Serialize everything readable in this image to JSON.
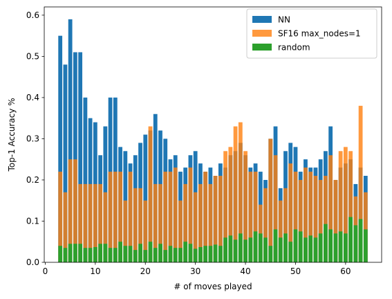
{
  "chart_data": {
    "type": "bar",
    "xlabel": "# of moves played",
    "ylabel": "Top-1 Accuracy %",
    "xlim": [
      -0.2,
      67.2
    ],
    "ylim": [
      0,
      0.62
    ],
    "xticks": [
      0,
      10,
      20,
      30,
      40,
      50,
      60
    ],
    "yticks": [
      0.0,
      0.1,
      0.2,
      0.3,
      0.4,
      0.5,
      0.6
    ],
    "ytick_labels": [
      "0.0",
      "0.1",
      "0.2",
      "0.3",
      "0.4",
      "0.5",
      "0.6"
    ],
    "grid": false,
    "legend_position": "top-right",
    "x": [
      3,
      4,
      5,
      6,
      7,
      8,
      9,
      10,
      11,
      12,
      13,
      14,
      15,
      16,
      17,
      18,
      19,
      20,
      21,
      22,
      23,
      24,
      25,
      26,
      27,
      28,
      29,
      30,
      31,
      32,
      33,
      34,
      35,
      36,
      37,
      38,
      39,
      40,
      41,
      42,
      43,
      44,
      45,
      46,
      47,
      48,
      49,
      50,
      51,
      52,
      53,
      54,
      55,
      56,
      57,
      58,
      59,
      60,
      61,
      62,
      63,
      64
    ],
    "series": [
      {
        "name": "NN",
        "color": "#1f77b4",
        "values": [
          0.55,
          0.48,
          0.59,
          0.51,
          0.51,
          0.4,
          0.35,
          0.34,
          0.26,
          0.33,
          0.4,
          0.4,
          0.28,
          0.27,
          0.24,
          0.26,
          0.29,
          0.31,
          0.32,
          0.36,
          0.32,
          0.3,
          0.25,
          0.26,
          0.22,
          0.23,
          0.26,
          0.27,
          0.24,
          0.22,
          0.23,
          0.21,
          0.24,
          0.23,
          0.26,
          0.27,
          0.29,
          0.26,
          0.23,
          0.24,
          0.22,
          0.2,
          0.3,
          0.33,
          0.18,
          0.27,
          0.29,
          0.28,
          0.22,
          0.25,
          0.23,
          0.23,
          0.25,
          0.27,
          0.33,
          0.2,
          0.23,
          0.24,
          0.25,
          0.19,
          0.23,
          0.21
        ]
      },
      {
        "name": "SF16 max_nodes=1",
        "color": "#ff7f0e",
        "values": [
          0.22,
          0.17,
          0.25,
          0.25,
          0.19,
          0.19,
          0.19,
          0.19,
          0.19,
          0.17,
          0.22,
          0.22,
          0.22,
          0.15,
          0.22,
          0.18,
          0.18,
          0.15,
          0.33,
          0.19,
          0.19,
          0.22,
          0.22,
          0.23,
          0.15,
          0.19,
          0.23,
          0.17,
          0.19,
          0.22,
          0.19,
          0.21,
          0.21,
          0.27,
          0.28,
          0.33,
          0.34,
          0.27,
          0.22,
          0.22,
          0.14,
          0.18,
          0.3,
          0.26,
          0.15,
          0.18,
          0.24,
          0.22,
          0.2,
          0.23,
          0.22,
          0.21,
          0.2,
          0.21,
          0.26,
          0.2,
          0.27,
          0.28,
          0.27,
          0.16,
          0.38,
          0.17
        ]
      },
      {
        "name": "random",
        "color": "#2ca02c",
        "values": [
          0.04,
          0.035,
          0.045,
          0.045,
          0.045,
          0.035,
          0.035,
          0.037,
          0.045,
          0.045,
          0.035,
          0.035,
          0.05,
          0.04,
          0.04,
          0.03,
          0.045,
          0.03,
          0.05,
          0.035,
          0.045,
          0.03,
          0.04,
          0.035,
          0.035,
          0.05,
          0.045,
          0.033,
          0.037,
          0.04,
          0.04,
          0.043,
          0.04,
          0.06,
          0.065,
          0.055,
          0.07,
          0.055,
          0.06,
          0.075,
          0.07,
          0.06,
          0.04,
          0.08,
          0.06,
          0.07,
          0.05,
          0.08,
          0.075,
          0.06,
          0.065,
          0.06,
          0.07,
          0.093,
          0.08,
          0.07,
          0.075,
          0.07,
          0.11,
          0.09,
          0.105,
          0.08
        ]
      }
    ]
  }
}
